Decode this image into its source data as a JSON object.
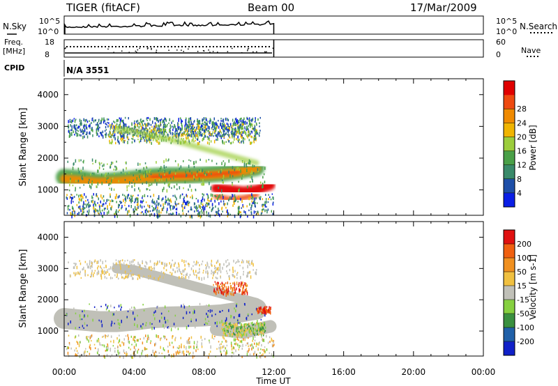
{
  "header": {
    "radar": "TIGER (fitACF)",
    "beam": "Beam 00",
    "date": "17/Mar/2009"
  },
  "noise_panel": {
    "left_label": "N.Sky",
    "right_label": "N.Search",
    "ticks": [
      "10^5",
      "10^0"
    ]
  },
  "freq_panel": {
    "left_label_1": "Freq.",
    "left_label_2": "[MHz]",
    "left_ticks": [
      "18",
      "8"
    ],
    "right_ticks": [
      "60",
      "0"
    ],
    "right_label": "Nave"
  },
  "cpid": {
    "label": "CPID",
    "value": "N/A 3551"
  },
  "x_axis": {
    "ticks": [
      "00:00",
      "04:00",
      "08:00",
      "12:00",
      "16:00",
      "20:00",
      "00:00"
    ],
    "label": "Time UT"
  },
  "chart_data": [
    {
      "type": "heatmap",
      "ylabel": "Slant Range [km]",
      "yticks": [
        "1000",
        "2000",
        "3000",
        "4000"
      ],
      "ylim": [
        200,
        4500
      ],
      "x_range_hours": [
        0,
        24
      ],
      "data_extent_hours": [
        0,
        12
      ],
      "colorbar": {
        "label": "Power [dB]",
        "ticks": [
          "4",
          "8",
          "12",
          "16",
          "20",
          "24",
          "28"
        ],
        "colors": [
          "#0a1ee6",
          "#1e4fa8",
          "#3a8a6a",
          "#4aa048",
          "#9ccd3c",
          "#f0b400",
          "#f08a00",
          "#ee4a10",
          "#e00000"
        ]
      }
    },
    {
      "type": "heatmap",
      "ylabel": "Slant Range [km]",
      "yticks": [
        "1000",
        "2000",
        "3000",
        "4000"
      ],
      "ylim": [
        200,
        4500
      ],
      "x_range_hours": [
        0,
        24
      ],
      "data_extent_hours": [
        0,
        12
      ],
      "colorbar": {
        "label": "Velocity [m s-1]",
        "ticks": [
          "200",
          "100",
          "50",
          "15",
          "-15",
          "-50",
          "-100",
          "-200"
        ],
        "colors": [
          "#1020c8",
          "#2060a8",
          "#3a9040",
          "#86d040",
          "#c0c0b8",
          "#f0c040",
          "#f09020",
          "#f06010",
          "#e01010"
        ]
      }
    }
  ]
}
